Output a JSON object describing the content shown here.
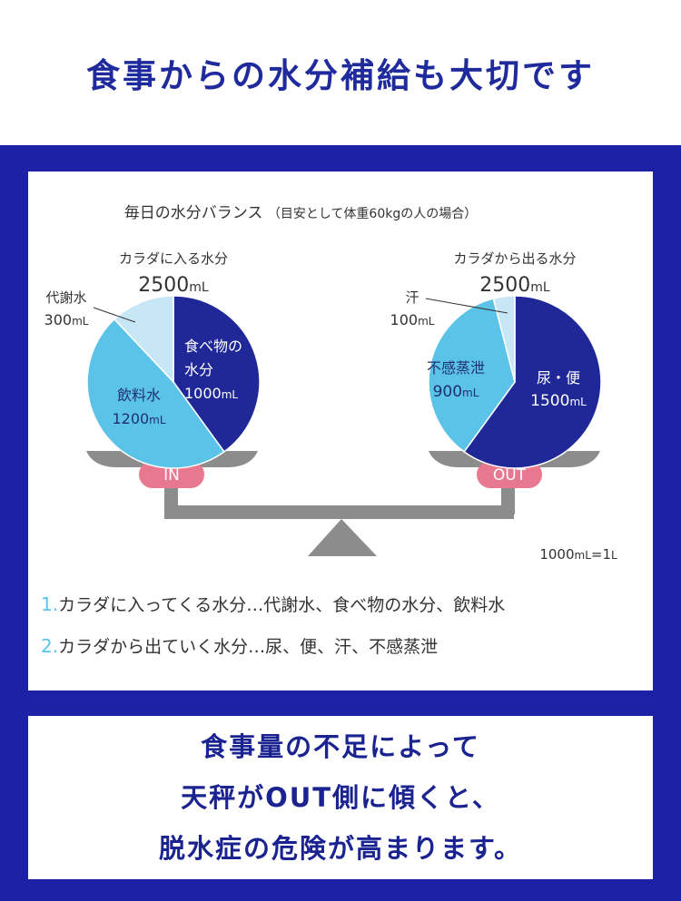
{
  "headline": "食事からの水分補給も大切です",
  "colors": {
    "band": "#1c21a6",
    "dark_blue": "#1f2896",
    "mid_blue": "#5bc3e8",
    "light_blue": "#c7e7f7",
    "pink": "#e8788f",
    "gray": "#8c8c8c"
  },
  "chart_data": [
    {
      "type": "pie",
      "title": "毎日の水分バランス",
      "subtitle": "（目安として体重60kgの人の場合）",
      "header": "カラダに入る水分",
      "total": "2500",
      "unit": "mL",
      "badge": "IN",
      "slices": [
        {
          "name": "食べ物の",
          "name2": "水分",
          "value": 1000,
          "color": "#1f2896"
        },
        {
          "name": "飲料水",
          "value": 1200,
          "color": "#5bc3e8"
        },
        {
          "name": "代謝水",
          "value": 300,
          "color": "#c7e7f7"
        }
      ]
    },
    {
      "type": "pie",
      "header": "カラダから出る水分",
      "total": "2500",
      "unit": "mL",
      "badge": "OUT",
      "slices": [
        {
          "name": "尿・便",
          "value": 1500,
          "color": "#1f2896"
        },
        {
          "name": "不感蒸泄",
          "value": 900,
          "color": "#5bc3e8"
        },
        {
          "name": "汗",
          "value": 100,
          "color": "#c7e7f7"
        }
      ]
    }
  ],
  "note": {
    "num": "1000",
    "unit": "mL",
    "eq": "=1",
    "unit2": "L"
  },
  "list": [
    {
      "num": "1.",
      "text": "カラダに入ってくる水分…代謝水、食べ物の水分、飲料水"
    },
    {
      "num": "2.",
      "text": "カラダから出ていく水分…尿、便、汗、不感蒸泄"
    }
  ],
  "bottom": [
    "食事量の不足によって",
    "天秤がOUT側に傾くと、",
    "脱水症の危険が高まります。"
  ]
}
